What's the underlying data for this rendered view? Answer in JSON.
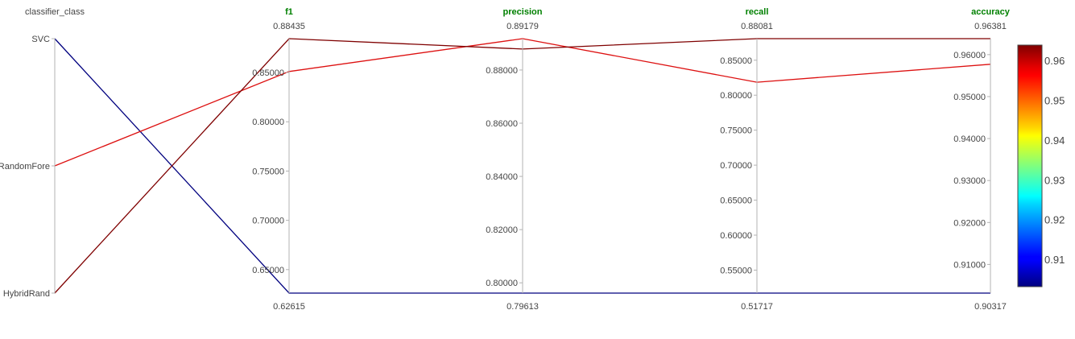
{
  "chart_data": {
    "type": "parallel_coordinates",
    "categorical_axis": {
      "name": "classifier_class",
      "categories": [
        "SVC",
        "RandomFore",
        "HybridRand"
      ]
    },
    "numeric_axes": [
      {
        "name": "f1",
        "min": 0.62615,
        "max": 0.88435,
        "min_label": "0.62615",
        "max_label": "0.88435",
        "ticks": [
          0.65,
          0.7,
          0.75,
          0.8,
          0.85
        ],
        "tick_labels": [
          "0.65000",
          "0.70000",
          "0.75000",
          "0.80000",
          "0.85000"
        ]
      },
      {
        "name": "precision",
        "min": 0.79613,
        "max": 0.89179,
        "min_label": "0.79613",
        "max_label": "0.89179",
        "ticks": [
          0.8,
          0.82,
          0.84,
          0.86,
          0.88
        ],
        "tick_labels": [
          "0.80000",
          "0.82000",
          "0.84000",
          "0.86000",
          "0.88000"
        ]
      },
      {
        "name": "recall",
        "min": 0.51717,
        "max": 0.88081,
        "min_label": "0.51717",
        "max_label": "0.88081",
        "ticks": [
          0.55,
          0.6,
          0.65,
          0.7,
          0.75,
          0.8,
          0.85
        ],
        "tick_labels": [
          "0.55000",
          "0.60000",
          "0.65000",
          "0.70000",
          "0.75000",
          "0.80000",
          "0.85000"
        ]
      },
      {
        "name": "accuracy",
        "min": 0.90317,
        "max": 0.96381,
        "min_label": "0.90317",
        "max_label": "0.96381",
        "ticks": [
          0.91,
          0.92,
          0.93,
          0.94,
          0.95,
          0.96
        ],
        "tick_labels": [
          "0.91000",
          "0.92000",
          "0.93000",
          "0.94000",
          "0.95000",
          "0.96000"
        ]
      }
    ],
    "series": [
      {
        "category": "SVC",
        "f1": 0.62615,
        "precision": 0.79613,
        "recall": 0.51717,
        "accuracy": 0.90317,
        "color": "#00007f"
      },
      {
        "category": "RandomFore",
        "f1": 0.851,
        "precision": 0.89179,
        "recall": 0.8185,
        "accuracy": 0.9577,
        "color": "#dd1010"
      },
      {
        "category": "HybridRand",
        "f1": 0.88435,
        "precision": 0.8879,
        "recall": 0.88081,
        "accuracy": 0.96381,
        "color": "#7f0000"
      }
    ],
    "colorbar": {
      "colorscale": "jet",
      "min": 0.90317,
      "max": 0.96381,
      "tick_values": [
        0.91,
        0.92,
        0.93,
        0.94,
        0.95,
        0.96
      ],
      "tick_labels": [
        "0.91",
        "0.92",
        "0.93",
        "0.94",
        "0.95",
        "0.96"
      ]
    }
  }
}
